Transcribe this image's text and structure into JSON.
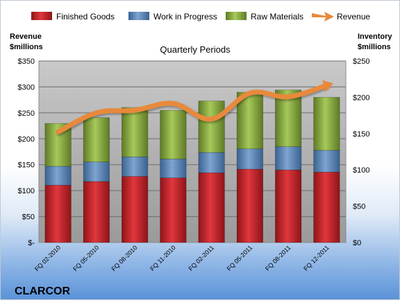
{
  "chart_data": {
    "type": "bar",
    "stacked": true,
    "title": "Quarterly Periods",
    "company": "CLARCOR",
    "left_axis_title": [
      "Revenue",
      "$millions"
    ],
    "right_axis_title": [
      "Inventory",
      "$millions"
    ],
    "categories": [
      "FQ 02-2010",
      "FQ 05-2010",
      "FQ 08-2010",
      "FQ 11-2010",
      "FQ 02-2011",
      "FQ 05-2011",
      "FQ 08-2011",
      "FQ 12-2011"
    ],
    "left_ylim": [
      0,
      350
    ],
    "right_ylim": [
      0,
      250
    ],
    "left_ticks": [
      "$-",
      "$50",
      "$100",
      "$150",
      "$200",
      "$250",
      "$300",
      "$350"
    ],
    "left_tick_values": [
      0,
      50,
      100,
      150,
      200,
      250,
      300,
      350
    ],
    "right_ticks": [
      "$0",
      "$50",
      "$100",
      "$150",
      "$200",
      "$250"
    ],
    "right_tick_values": [
      0,
      50,
      100,
      150,
      200,
      250
    ],
    "grid": true,
    "legend_position": "top",
    "series": [
      {
        "name": "Finished Goods",
        "axis": "right",
        "color": "#c0272d",
        "values": [
          79,
          84,
          91,
          89,
          96,
          101,
          100,
          97
        ]
      },
      {
        "name": "Work in Progress",
        "axis": "right",
        "color": "#4f81bd",
        "values": [
          26,
          27,
          27,
          26,
          28,
          28,
          32,
          30
        ]
      },
      {
        "name": "Raw Materials",
        "axis": "right",
        "color": "#8db03f",
        "values": [
          59,
          61,
          68,
          67,
          71,
          78,
          78,
          73
        ]
      },
      {
        "name": "Revenue",
        "axis": "left",
        "type": "line",
        "color": "#e8893a",
        "values": [
          213,
          250,
          255,
          268,
          238,
          288,
          281,
          303
        ]
      }
    ]
  }
}
